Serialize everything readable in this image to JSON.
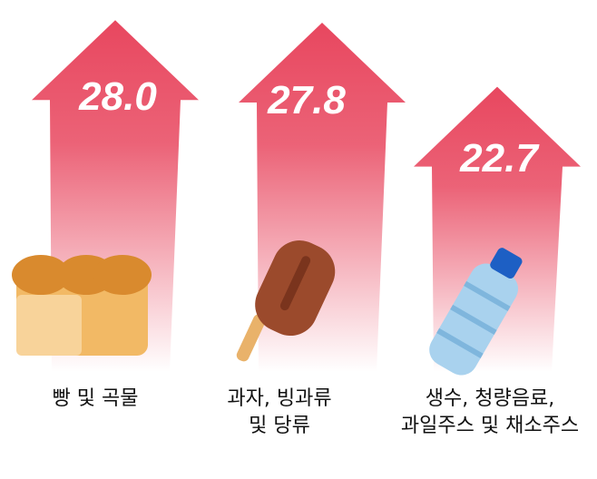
{
  "chart_data": {
    "type": "bar",
    "style": "upward arrows with value labels",
    "categories": [
      "빵 및 곡물",
      "과자, 빙과류 및 당류",
      "생수, 청량음료, 과일주스 및 채소주스"
    ],
    "category_lines": [
      [
        "빵 및 곡물"
      ],
      [
        "과자, 빙과류",
        "및 당류"
      ],
      [
        "생수, 청량음료,",
        "과일주스 및 채소주스"
      ]
    ],
    "values": [
      28.0,
      27.8,
      22.7
    ],
    "value_labels": [
      "28.0",
      "27.8",
      "22.7"
    ],
    "icons": [
      "bread-icon",
      "popsicle-icon",
      "water-bottle-icon"
    ],
    "colors": {
      "arrow": "#e8475f",
      "fade": "#ffffff",
      "value_text": "#ffffff"
    },
    "grid": false
  }
}
